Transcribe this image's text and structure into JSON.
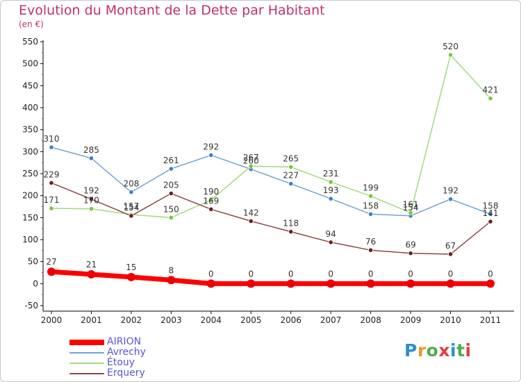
{
  "title": "Evolution du Montant de la Dette par Habitant",
  "subtitle": "(en €)",
  "logo": {
    "letters": [
      "P",
      "r",
      "o",
      "x",
      "i",
      "t",
      "i"
    ],
    "colors": [
      "#2a8fd0",
      "#f0962a",
      "#4cae4c",
      "#e63c3c",
      "#2a8fd0",
      "#4cae4c",
      "#e63c3c"
    ]
  },
  "chart_data": {
    "type": "line",
    "title": "Evolution du Montant de la Dette par Habitant",
    "subtitle": "(en €)",
    "x": [
      "2000",
      "2001",
      "2002",
      "2003",
      "2004",
      "2005",
      "2006",
      "2007",
      "2008",
      "2009",
      "2010",
      "2011"
    ],
    "ylim": [
      -50,
      550
    ],
    "yticks": [
      -50,
      0,
      50,
      100,
      150,
      200,
      250,
      300,
      350,
      400,
      450,
      500,
      550
    ],
    "grid": false,
    "legend_position": "bottom-left",
    "series": [
      {
        "name": "AIRION",
        "values": [
          27,
          21,
          15,
          8,
          0,
          0,
          0,
          0,
          0,
          0,
          0,
          0
        ],
        "color": "#ff0000",
        "marker": "#ee0000",
        "emphasis": true
      },
      {
        "name": "Avrechy",
        "values": [
          310,
          285,
          208,
          261,
          292,
          260,
          227,
          193,
          158,
          154,
          192,
          158
        ],
        "color": "#6fa3d3",
        "marker": "#3d7fc7"
      },
      {
        "name": "Étouy",
        "values": [
          171,
          170,
          157,
          150,
          190,
          267,
          265,
          231,
          199,
          161,
          520,
          421
        ],
        "color": "#a4d97a",
        "marker": "#79c63a"
      },
      {
        "name": "Erquery",
        "values": [
          229,
          192,
          154,
          205,
          169,
          142,
          118,
          94,
          76,
          69,
          67,
          141
        ],
        "color": "#8a4646",
        "marker": "#6a1f1f"
      }
    ]
  }
}
